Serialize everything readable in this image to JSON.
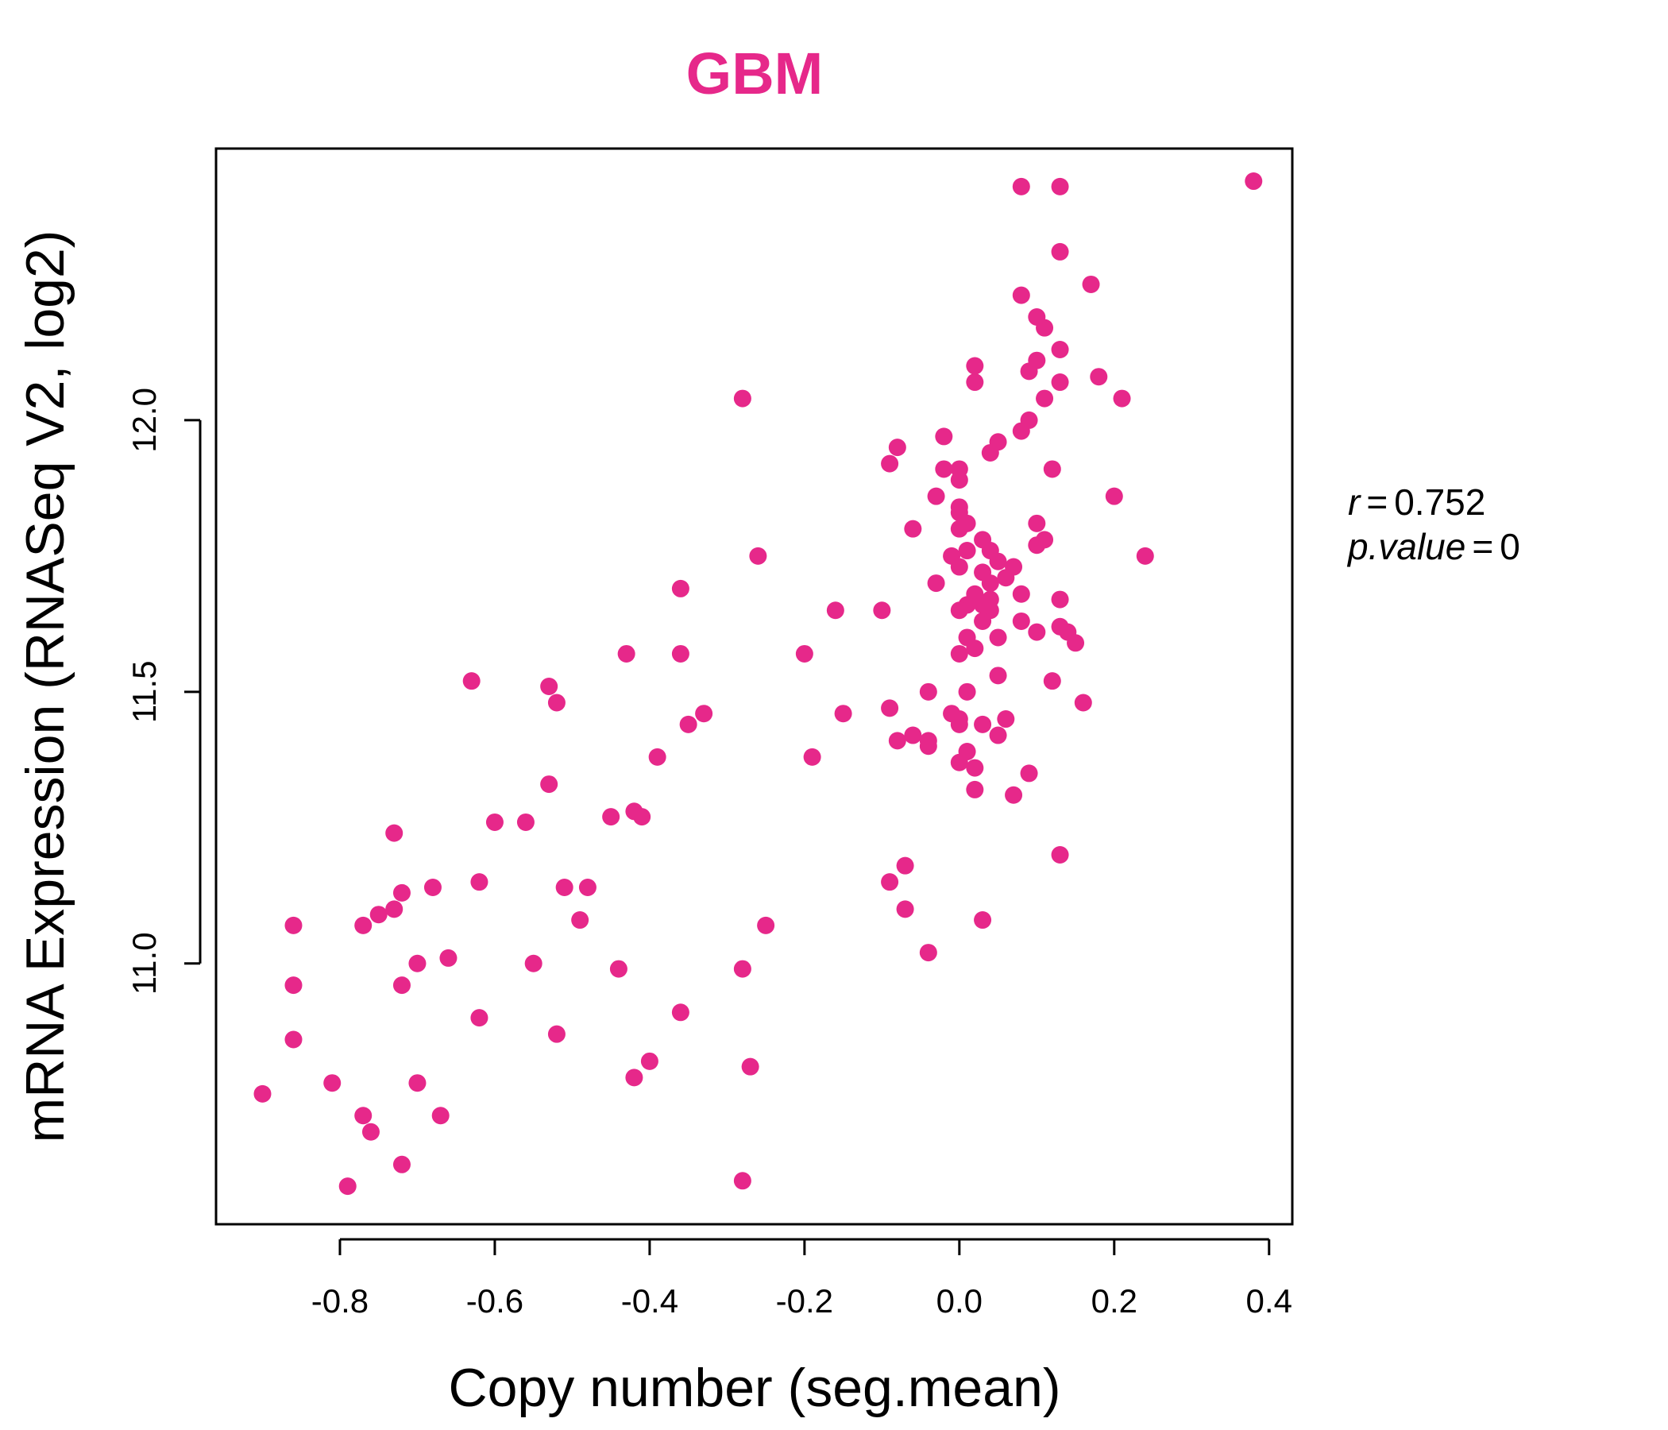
{
  "colors": {
    "accent": "#e6288a",
    "axis": "#000000",
    "background": "#ffffff"
  },
  "stats": {
    "r_label": "r",
    "r_value": "0.752",
    "p_label": "p.value",
    "p_value": "0"
  },
  "chart_data": {
    "type": "scatter",
    "title": "GBM",
    "xlabel": "Copy number (seg.mean)",
    "ylabel": "mRNA Expression (RNASeq V2, log2)",
    "xlim": [
      -0.96,
      0.43
    ],
    "ylim": [
      10.52,
      12.5
    ],
    "xticks": [
      -0.8,
      -0.6,
      -0.4,
      -0.2,
      0.0,
      0.2,
      0.4
    ],
    "xtick_labels": [
      "-0.8",
      "-0.6",
      "-0.4",
      "-0.2",
      "0.0",
      "0.2",
      "0.4"
    ],
    "yticks": [
      11.0,
      11.5,
      12.0
    ],
    "ytick_labels": [
      "11.0",
      "11.5",
      "12.0"
    ],
    "grid": false,
    "points": [
      [
        0.38,
        12.44
      ],
      [
        0.08,
        12.43
      ],
      [
        0.13,
        12.43
      ],
      [
        0.13,
        12.31
      ],
      [
        0.17,
        12.25
      ],
      [
        0.08,
        12.23
      ],
      [
        0.1,
        12.19
      ],
      [
        0.11,
        12.17
      ],
      [
        0.13,
        12.13
      ],
      [
        0.1,
        12.11
      ],
      [
        0.09,
        12.09
      ],
      [
        0.02,
        12.1
      ],
      [
        0.18,
        12.08
      ],
      [
        0.13,
        12.07
      ],
      [
        0.02,
        12.07
      ],
      [
        0.21,
        12.04
      ],
      [
        0.11,
        12.04
      ],
      [
        -0.28,
        12.04
      ],
      [
        0.09,
        12.0
      ],
      [
        0.08,
        11.98
      ],
      [
        -0.02,
        11.97
      ],
      [
        0.05,
        11.96
      ],
      [
        0.04,
        11.94
      ],
      [
        -0.08,
        11.95
      ],
      [
        -0.09,
        11.92
      ],
      [
        -0.02,
        11.91
      ],
      [
        0.0,
        11.91
      ],
      [
        0.12,
        11.91
      ],
      [
        0.0,
        11.89
      ],
      [
        -0.03,
        11.86
      ],
      [
        0.2,
        11.86
      ],
      [
        0.0,
        11.84
      ],
      [
        0.0,
        11.83
      ],
      [
        0.01,
        11.81
      ],
      [
        0.1,
        11.81
      ],
      [
        -0.06,
        11.8
      ],
      [
        0.0,
        11.8
      ],
      [
        0.03,
        11.78
      ],
      [
        0.11,
        11.78
      ],
      [
        0.1,
        11.77
      ],
      [
        0.04,
        11.76
      ],
      [
        0.01,
        11.76
      ],
      [
        -0.26,
        11.75
      ],
      [
        0.24,
        11.75
      ],
      [
        -0.01,
        11.75
      ],
      [
        0.05,
        11.74
      ],
      [
        0.07,
        11.73
      ],
      [
        0.0,
        11.73
      ],
      [
        0.03,
        11.72
      ],
      [
        0.06,
        11.71
      ],
      [
        -0.03,
        11.7
      ],
      [
        0.04,
        11.7
      ],
      [
        -0.36,
        11.69
      ],
      [
        0.02,
        11.68
      ],
      [
        0.08,
        11.68
      ],
      [
        0.04,
        11.67
      ],
      [
        0.13,
        11.67
      ],
      [
        0.01,
        11.66
      ],
      [
        -0.16,
        11.65
      ],
      [
        -0.1,
        11.65
      ],
      [
        0.0,
        11.65
      ],
      [
        0.03,
        11.66
      ],
      [
        0.04,
        11.65
      ],
      [
        0.03,
        11.63
      ],
      [
        0.08,
        11.63
      ],
      [
        0.13,
        11.62
      ],
      [
        0.14,
        11.61
      ],
      [
        0.1,
        11.61
      ],
      [
        0.05,
        11.6
      ],
      [
        0.01,
        11.6
      ],
      [
        0.15,
        11.59
      ],
      [
        0.02,
        11.58
      ],
      [
        0.0,
        11.57
      ],
      [
        -0.2,
        11.57
      ],
      [
        -0.43,
        11.57
      ],
      [
        -0.36,
        11.57
      ],
      [
        0.05,
        11.53
      ],
      [
        0.12,
        11.52
      ],
      [
        -0.63,
        11.52
      ],
      [
        -0.53,
        11.51
      ],
      [
        0.01,
        11.5
      ],
      [
        -0.04,
        11.5
      ],
      [
        0.16,
        11.48
      ],
      [
        -0.52,
        11.48
      ],
      [
        -0.09,
        11.47
      ],
      [
        -0.15,
        11.46
      ],
      [
        -0.01,
        11.46
      ],
      [
        0.0,
        11.45
      ],
      [
        -0.33,
        11.46
      ],
      [
        -0.35,
        11.44
      ],
      [
        0.03,
        11.44
      ],
      [
        0.06,
        11.45
      ],
      [
        0.0,
        11.44
      ],
      [
        -0.06,
        11.42
      ],
      [
        0.05,
        11.42
      ],
      [
        -0.04,
        11.41
      ],
      [
        -0.08,
        11.41
      ],
      [
        -0.04,
        11.4
      ],
      [
        0.01,
        11.39
      ],
      [
        -0.39,
        11.38
      ],
      [
        -0.19,
        11.38
      ],
      [
        0.0,
        11.37
      ],
      [
        0.02,
        11.36
      ],
      [
        0.09,
        11.35
      ],
      [
        -0.53,
        11.33
      ],
      [
        0.02,
        11.32
      ],
      [
        0.07,
        11.31
      ],
      [
        -0.42,
        11.28
      ],
      [
        -0.45,
        11.27
      ],
      [
        -0.41,
        11.27
      ],
      [
        -0.56,
        11.26
      ],
      [
        -0.6,
        11.26
      ],
      [
        -0.73,
        11.24
      ],
      [
        0.13,
        11.2
      ],
      [
        -0.07,
        11.18
      ],
      [
        -0.09,
        11.15
      ],
      [
        -0.62,
        11.15
      ],
      [
        -0.51,
        11.14
      ],
      [
        -0.68,
        11.14
      ],
      [
        -0.48,
        11.14
      ],
      [
        -0.72,
        11.13
      ],
      [
        -0.73,
        11.1
      ],
      [
        -0.07,
        11.1
      ],
      [
        -0.75,
        11.09
      ],
      [
        -0.49,
        11.08
      ],
      [
        0.03,
        11.08
      ],
      [
        -0.77,
        11.07
      ],
      [
        -0.86,
        11.07
      ],
      [
        -0.25,
        11.07
      ],
      [
        -0.04,
        11.02
      ],
      [
        -0.66,
        11.01
      ],
      [
        -0.55,
        11.0
      ],
      [
        -0.7,
        11.0
      ],
      [
        -0.44,
        10.99
      ],
      [
        -0.28,
        10.99
      ],
      [
        -0.86,
        10.96
      ],
      [
        -0.72,
        10.96
      ],
      [
        -0.36,
        10.91
      ],
      [
        -0.62,
        10.9
      ],
      [
        -0.52,
        10.87
      ],
      [
        -0.86,
        10.86
      ],
      [
        -0.4,
        10.82
      ],
      [
        -0.27,
        10.81
      ],
      [
        -0.42,
        10.79
      ],
      [
        -0.81,
        10.78
      ],
      [
        -0.7,
        10.78
      ],
      [
        -0.9,
        10.76
      ],
      [
        -0.77,
        10.72
      ],
      [
        -0.67,
        10.72
      ],
      [
        -0.76,
        10.69
      ],
      [
        -0.72,
        10.63
      ],
      [
        -0.79,
        10.59
      ],
      [
        -0.28,
        10.6
      ]
    ]
  }
}
